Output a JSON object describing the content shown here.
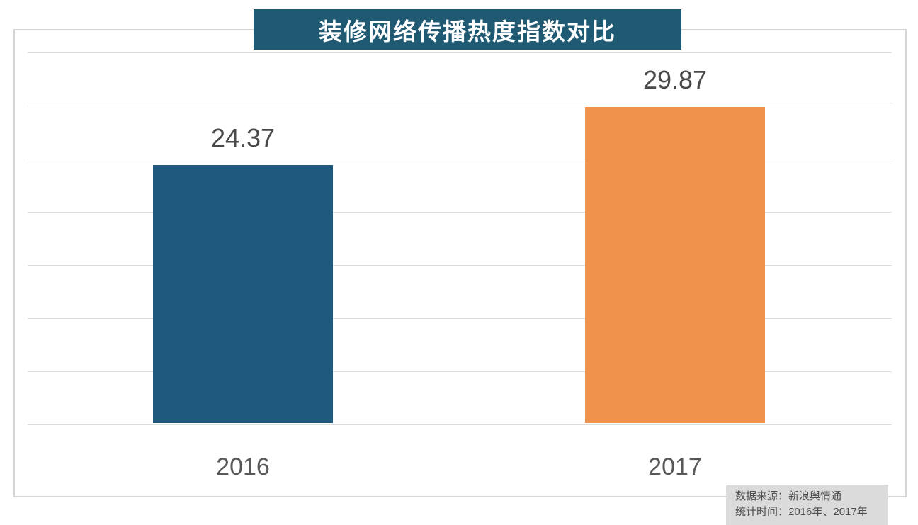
{
  "title": "装修网络传播热度指数对比",
  "chart_data": {
    "type": "bar",
    "title": "装修网络传播热度指数对比",
    "categories": [
      "2016",
      "2017"
    ],
    "values": [
      24.37,
      29.87
    ],
    "value_labels": [
      "24.37",
      "29.87"
    ],
    "bar_colors": [
      "#1d5a7d",
      "#f0914c"
    ],
    "xlabel": "",
    "ylabel": "",
    "ylim": [
      0,
      35
    ],
    "grid_step": 5,
    "grid": true,
    "legend": false,
    "y_tick_labels_visible": false
  },
  "source_note": {
    "line1": "数据来源：新浪舆情通",
    "line2": "统计时间：2016年、2017年"
  },
  "colors": {
    "title_bg": "#1f5972",
    "title_text": "#ffffff",
    "bar_2016": "#1d5a7d",
    "bar_2017": "#f0914c",
    "grid_line": "#dcdcdc",
    "frame_border": "#d5d5d5",
    "value_label_text": "#4a4a4a",
    "category_label_text": "#595959",
    "source_bg": "#dbdbdb",
    "source_text": "#4d4d4d",
    "background": "#ffffff"
  }
}
